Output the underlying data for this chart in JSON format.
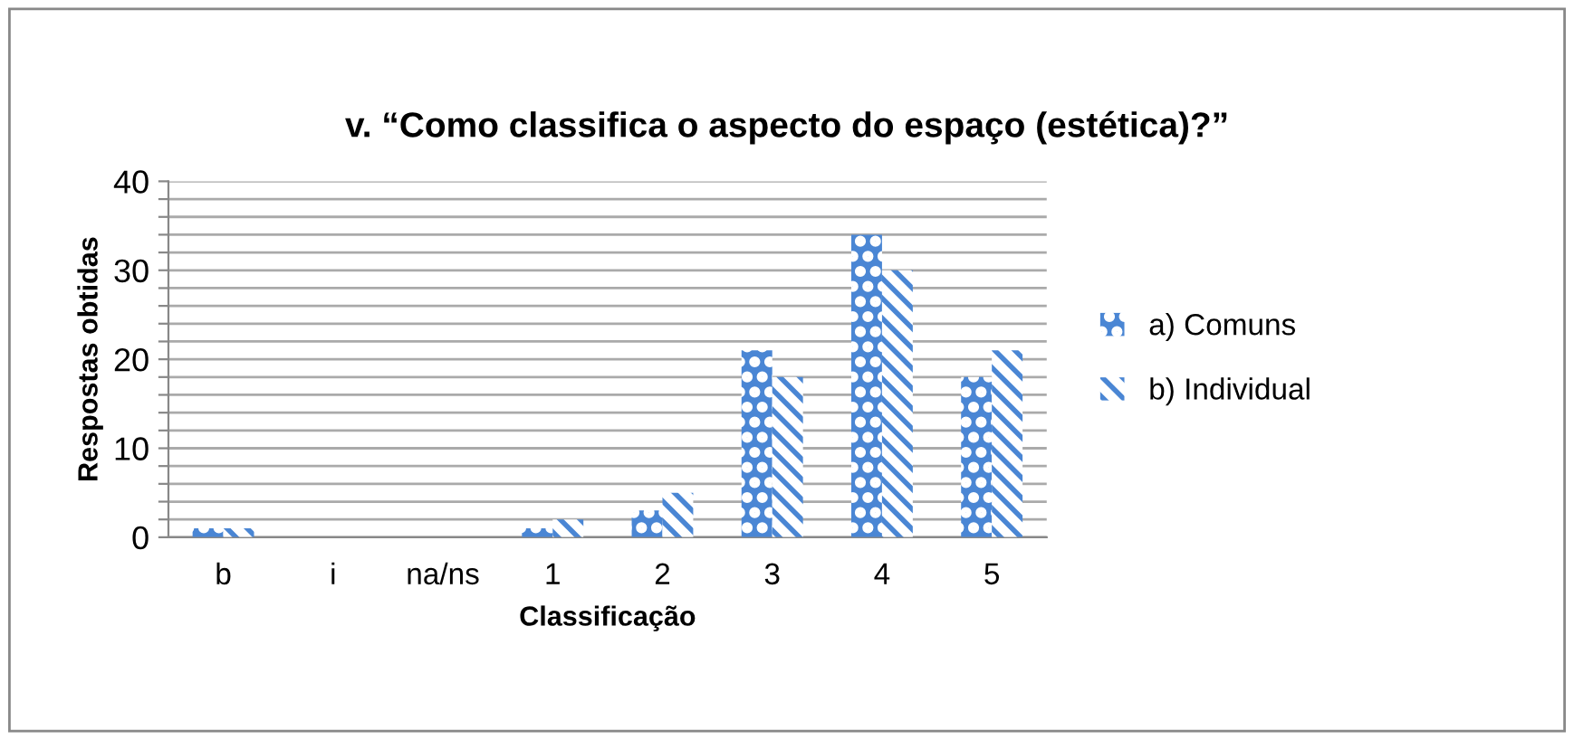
{
  "chart_data": {
    "type": "bar",
    "title": "v. “Como classifica o aspecto do espaço (estética)?”",
    "xlabel": "Classificação",
    "ylabel": "Respostas obtidas",
    "categories": [
      "b",
      "i",
      "na/ns",
      "1",
      "2",
      "3",
      "4",
      "5"
    ],
    "series": [
      {
        "name": "a) Comuns",
        "color": "#4a86d4",
        "values": [
          1,
          0,
          0,
          1,
          3,
          21,
          34,
          18
        ]
      },
      {
        "name": "b) Individual",
        "color": "#4a86d4",
        "values": [
          1,
          0,
          0,
          2,
          5,
          18,
          30,
          21
        ]
      }
    ],
    "ylim": [
      0,
      40
    ],
    "yticks": [
      0,
      {
        "value": 2,
        "label": null
      },
      {
        "value": 4,
        "label": null
      },
      {
        "value": 6,
        "label": null
      },
      {
        "value": 8,
        "label": null
      },
      10,
      {
        "value": 12,
        "label": null
      },
      {
        "value": 14,
        "label": null
      },
      {
        "value": 16,
        "label": null
      },
      {
        "value": 18,
        "label": null
      },
      20,
      {
        "value": 22,
        "label": null
      },
      {
        "value": 24,
        "label": null
      },
      {
        "value": 26,
        "label": null
      },
      {
        "value": 28,
        "label": null
      },
      30,
      {
        "value": 32,
        "label": null
      },
      {
        "value": 34,
        "label": null
      },
      {
        "value": 36,
        "label": null
      },
      {
        "value": 38,
        "label": null
      },
      40
    ],
    "grid": "y",
    "legend": "right"
  }
}
